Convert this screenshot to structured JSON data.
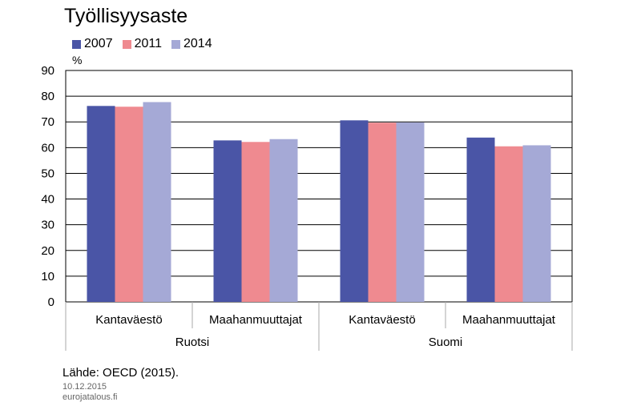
{
  "title": "Työllisyysaste",
  "source": "Lähde: OECD (2015).",
  "date": "10.12.2015",
  "site": "eurojatalous.fi",
  "colors": {
    "2007": "#4a55a6",
    "2011": "#ef8a90",
    "2014": "#a5a9d6"
  },
  "chart_data": {
    "type": "bar",
    "title": "Työllisyysaste",
    "ylabel": "%",
    "ylim": [
      0,
      90
    ],
    "yticks": [
      0,
      10,
      20,
      30,
      40,
      50,
      60,
      70,
      80,
      90
    ],
    "grid": true,
    "legend_position": "top-left",
    "categories": [
      "Kantaväestö",
      "Maahanmuuttajat",
      "Kantaväestö",
      "Maahanmuuttajat"
    ],
    "groups": [
      {
        "label": "Ruotsi",
        "categories": [
          "Kantaväestö",
          "Maahanmuuttajat"
        ]
      },
      {
        "label": "Suomi",
        "categories": [
          "Kantaväestö",
          "Maahanmuuttajat"
        ]
      }
    ],
    "series": [
      {
        "name": "2007",
        "values": [
          76.2,
          62.8,
          70.6,
          63.9
        ]
      },
      {
        "name": "2011",
        "values": [
          75.9,
          62.2,
          69.7,
          60.5
        ]
      },
      {
        "name": "2014",
        "values": [
          77.7,
          63.3,
          69.8,
          60.9
        ]
      }
    ]
  }
}
